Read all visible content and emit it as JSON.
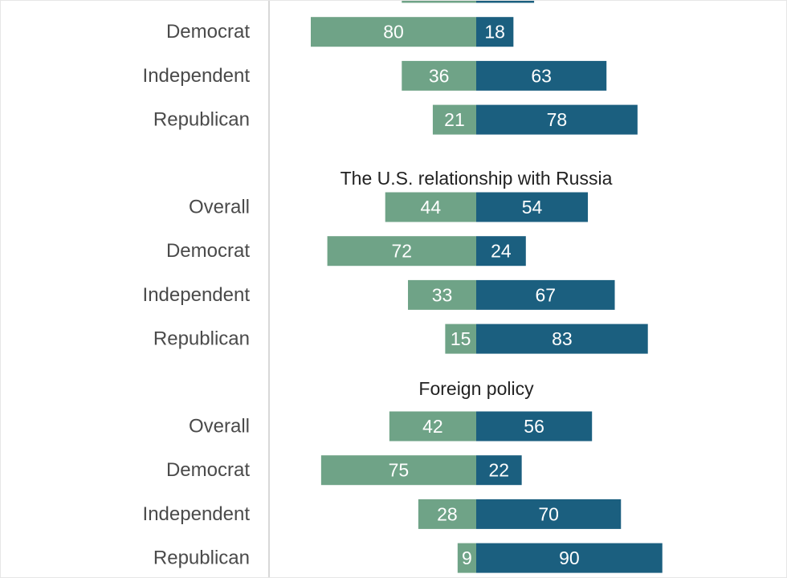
{
  "chart_data": {
    "type": "bar",
    "orientation": "horizontal-diverging",
    "colors": {
      "left": "#6fa387",
      "right": "#1b5f7f",
      "label": "#4a4a4a",
      "axis": "#cccccc"
    },
    "groups": [
      {
        "title": "",
        "partial": true,
        "rows": [
          {
            "label": "",
            "left": 36,
            "right": 28
          },
          {
            "label": "Democrat",
            "left": 80,
            "right": 18
          },
          {
            "label": "Independent",
            "left": 36,
            "right": 63
          },
          {
            "label": "Republican",
            "left": 21,
            "right": 78
          }
        ]
      },
      {
        "title": "The U.S. relationship with Russia",
        "rows": [
          {
            "label": "Overall",
            "left": 44,
            "right": 54
          },
          {
            "label": "Democrat",
            "left": 72,
            "right": 24
          },
          {
            "label": "Independent",
            "left": 33,
            "right": 67
          },
          {
            "label": "Republican",
            "left": 15,
            "right": 83
          }
        ]
      },
      {
        "title": "Foreign policy",
        "rows": [
          {
            "label": "Overall",
            "left": 42,
            "right": 56
          },
          {
            "label": "Democrat",
            "left": 75,
            "right": 22
          },
          {
            "label": "Independent",
            "left": 28,
            "right": 70
          },
          {
            "label": "Republican",
            "left": 9,
            "right": 90
          }
        ]
      }
    ]
  }
}
